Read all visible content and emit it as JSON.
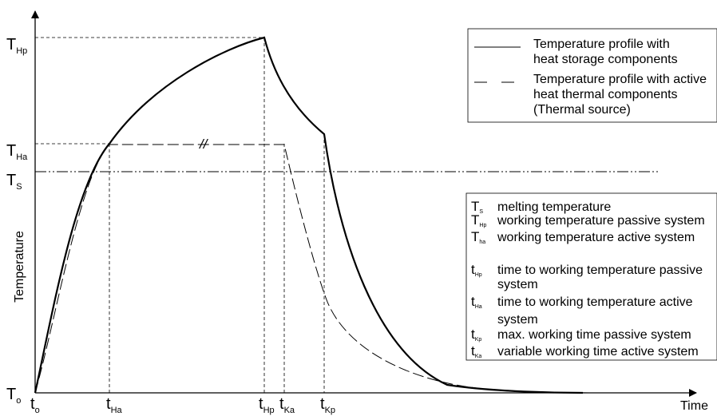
{
  "chart_data": {
    "type": "line",
    "title": "",
    "xlabel": "Time",
    "ylabel": "Temperature",
    "y_levels": [
      {
        "sym": "T",
        "sub": "Hp"
      },
      {
        "sym": "T",
        "sub": "Ha"
      },
      {
        "sym": "T",
        "sub": "S"
      },
      {
        "sym": "T",
        "sub": "o"
      }
    ],
    "x_marks": [
      {
        "sym": "t",
        "sub": "o"
      },
      {
        "sym": "t",
        "sub": "Ha"
      },
      {
        "sym": "t",
        "sub": "Hp"
      },
      {
        "sym": "t",
        "sub": "Ka"
      },
      {
        "sym": "t",
        "sub": "Kp"
      }
    ],
    "break_mark": "//",
    "series": [
      {
        "name": "Temperature profile with heat storage components",
        "style": "solid"
      },
      {
        "name": "Temperature profile with active heat thermal components (Thermal source)",
        "style": "dashed"
      }
    ],
    "reference_line": {
      "label": "T_S",
      "style": "dash-dot-dot"
    }
  },
  "legend": {
    "items": [
      {
        "style": "solid",
        "lines": [
          "Temperature profile with",
          "heat storage components"
        ]
      },
      {
        "style": "dashed",
        "lines": [
          "Temperature profile with active",
          "heat thermal components",
          "(Thermal source)"
        ]
      }
    ]
  },
  "symbols": {
    "items": [
      {
        "sym": "T",
        "sub": "S",
        "lines": [
          "melting temperature"
        ]
      },
      {
        "sym": "T",
        "sub": "Hp",
        "lines": [
          "working temperature passive system"
        ]
      },
      {
        "sym": "T",
        "sub": "ha",
        "lines": [
          "working temperature active system"
        ]
      },
      {
        "sym": "t",
        "sub": "Hp",
        "lines": [
          "time to working temperature passive",
          "system"
        ]
      },
      {
        "sym": "t",
        "sub": "Ha",
        "lines": [
          "time to working temperature active",
          "system"
        ]
      },
      {
        "sym": "t",
        "sub": "Kp",
        "lines": [
          "max. working time passive system"
        ]
      },
      {
        "sym": "t",
        "sub": "Ka",
        "lines": [
          "variable working time active system"
        ]
      }
    ]
  }
}
